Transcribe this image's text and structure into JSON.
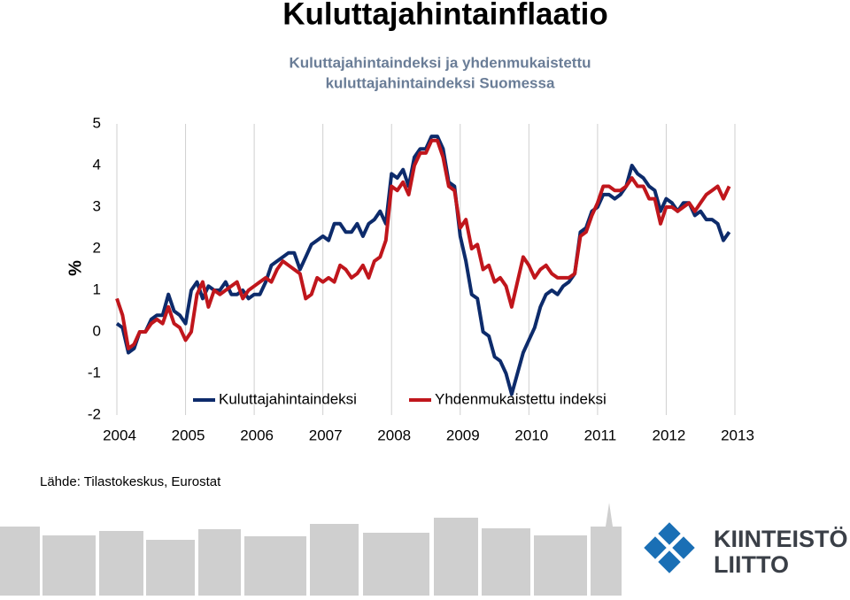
{
  "chart_data": {
    "type": "line",
    "title": "Kuluttajahintainflaatio",
    "subtitle": [
      "Kuluttajahintaindeksi ja yhdenmukaistettu",
      "kuluttajahintaindeksi Suomessa"
    ],
    "y_label": "%",
    "source": "Lähde: Tilastokeskus, Eurostat",
    "x": [
      2004,
      2004.083,
      2004.167,
      2004.25,
      2004.333,
      2004.417,
      2004.5,
      2004.583,
      2004.667,
      2004.75,
      2004.833,
      2004.917,
      2005,
      2005.083,
      2005.167,
      2005.25,
      2005.333,
      2005.417,
      2005.5,
      2005.583,
      2005.667,
      2005.75,
      2005.833,
      2005.917,
      2006,
      2006.083,
      2006.167,
      2006.25,
      2006.333,
      2006.417,
      2006.5,
      2006.583,
      2006.667,
      2006.75,
      2006.833,
      2006.917,
      2007,
      2007.083,
      2007.167,
      2007.25,
      2007.333,
      2007.417,
      2007.5,
      2007.583,
      2007.667,
      2007.75,
      2007.833,
      2007.917,
      2008,
      2008.083,
      2008.167,
      2008.25,
      2008.333,
      2008.417,
      2008.5,
      2008.583,
      2008.667,
      2008.75,
      2008.833,
      2008.917,
      2009,
      2009.083,
      2009.167,
      2009.25,
      2009.333,
      2009.417,
      2009.5,
      2009.583,
      2009.667,
      2009.75,
      2009.833,
      2009.917,
      2010,
      2010.083,
      2010.167,
      2010.25,
      2010.333,
      2010.417,
      2010.5,
      2010.583,
      2010.667,
      2010.75,
      2010.833,
      2010.917,
      2011,
      2011.083,
      2011.167,
      2011.25,
      2011.333,
      2011.417,
      2011.5,
      2011.583,
      2011.667,
      2011.75,
      2011.833,
      2011.917,
      2012,
      2012.083,
      2012.167,
      2012.25,
      2012.333,
      2012.417,
      2012.5,
      2012.583,
      2012.667,
      2012.75,
      2012.833,
      2012.917
    ],
    "series": [
      {
        "name": "Kuluttajahintaindeksi",
        "color": "#0d2b6b",
        "values": [
          0.2,
          0.1,
          -0.5,
          -0.4,
          0.0,
          0.0,
          0.3,
          0.4,
          0.4,
          0.9,
          0.5,
          0.4,
          0.2,
          1.0,
          1.2,
          0.8,
          1.1,
          1.0,
          1.0,
          1.2,
          0.9,
          0.9,
          1.0,
          0.8,
          0.9,
          0.9,
          1.2,
          1.6,
          1.7,
          1.8,
          1.9,
          1.9,
          1.5,
          1.8,
          2.1,
          2.2,
          2.3,
          2.2,
          2.6,
          2.6,
          2.4,
          2.4,
          2.6,
          2.3,
          2.6,
          2.7,
          2.9,
          2.6,
          3.8,
          3.7,
          3.9,
          3.5,
          4.2,
          4.4,
          4.4,
          4.7,
          4.7,
          4.4,
          3.6,
          3.5,
          2.3,
          1.7,
          0.9,
          0.8,
          0.0,
          -0.1,
          -0.6,
          -0.7,
          -1.0,
          -1.5,
          -1.0,
          -0.5,
          -0.2,
          0.1,
          0.6,
          0.9,
          1.0,
          0.9,
          1.1,
          1.2,
          1.4,
          2.4,
          2.5,
          2.9,
          3.0,
          3.3,
          3.3,
          3.2,
          3.3,
          3.5,
          4.0,
          3.8,
          3.7,
          3.5,
          3.4,
          2.9,
          3.2,
          3.1,
          2.9,
          3.1,
          3.1,
          2.8,
          2.9,
          2.7,
          2.7,
          2.6,
          2.2,
          2.4
        ]
      },
      {
        "name": "Yhdenmukaistettu indeksi",
        "color": "#c0161c",
        "values": [
          0.8,
          0.4,
          -0.4,
          -0.3,
          0.0,
          0.0,
          0.2,
          0.3,
          0.2,
          0.6,
          0.2,
          0.1,
          -0.2,
          0.0,
          0.9,
          1.2,
          0.6,
          1.0,
          0.9,
          1.0,
          1.1,
          1.2,
          0.8,
          1.0,
          1.1,
          1.2,
          1.3,
          1.2,
          1.5,
          1.7,
          1.6,
          1.5,
          1.4,
          0.8,
          0.9,
          1.3,
          1.2,
          1.3,
          1.2,
          1.6,
          1.5,
          1.3,
          1.4,
          1.6,
          1.3,
          1.7,
          1.8,
          2.2,
          3.5,
          3.4,
          3.6,
          3.3,
          4.0,
          4.3,
          4.3,
          4.6,
          4.6,
          4.2,
          3.5,
          3.4,
          2.5,
          2.7,
          2.0,
          2.1,
          1.5,
          1.6,
          1.2,
          1.3,
          1.1,
          0.6,
          1.2,
          1.8,
          1.6,
          1.3,
          1.5,
          1.6,
          1.4,
          1.3,
          1.3,
          1.3,
          1.4,
          2.3,
          2.4,
          2.8,
          3.1,
          3.5,
          3.5,
          3.4,
          3.4,
          3.5,
          3.7,
          3.5,
          3.5,
          3.2,
          3.2,
          2.6,
          3.0,
          3.0,
          2.9,
          3.0,
          3.1,
          2.9,
          3.1,
          3.3,
          3.4,
          3.5,
          3.2,
          3.5
        ]
      }
    ],
    "xlim": [
      2004,
      2013
    ],
    "xticks": [
      2004,
      2005,
      2006,
      2007,
      2008,
      2009,
      2010,
      2011,
      2012,
      2013
    ],
    "ylim": [
      -2,
      5
    ],
    "yticks": [
      -2,
      -1,
      0,
      1,
      2,
      3,
      4,
      5
    ],
    "grid": "x"
  },
  "logo": [
    "KIINTEISTÖ",
    "LIITTO"
  ]
}
